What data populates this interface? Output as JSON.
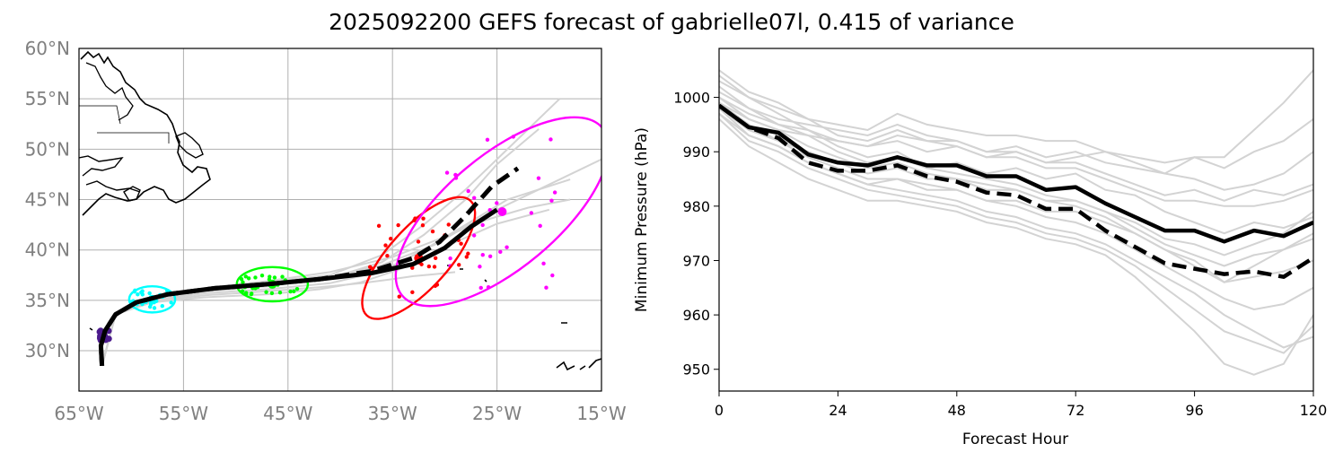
{
  "title": "2025092200 GEFS forecast of gabrielle07l, 0.415 of variance",
  "colors": {
    "members": "#d3d3d3",
    "mean": "#000000",
    "day0": "#4b1a8c",
    "day1": "#00ffff",
    "day2": "#00ff00",
    "day3": "#ff0000",
    "day4": "#ff00ff",
    "coast": "#000000",
    "grid": "#b0b0b0"
  },
  "chart_data": [
    {
      "type": "scatter",
      "subtype": "track-map",
      "xlim": [
        -65,
        -15
      ],
      "ylim": [
        26,
        60
      ],
      "xticks": [
        -65,
        -55,
        -45,
        -35,
        -25,
        -15
      ],
      "xtick_labels": [
        "65°W",
        "55°W",
        "45°W",
        "35°W",
        "25°W",
        "15°W"
      ],
      "yticks": [
        30,
        35,
        40,
        45,
        50,
        55,
        60
      ],
      "ytick_labels": [
        "30°N",
        "35°N",
        "40°N",
        "45°N",
        "50°N",
        "55°N",
        "60°N"
      ],
      "grid": true,
      "series": [
        {
          "style": "solid",
          "lon": [
            -62.8,
            -62.9,
            -62.5,
            -61.5,
            -59.5,
            -56.5,
            -52,
            -47,
            -42,
            -37,
            -33,
            -30,
            -27.5,
            -25
          ],
          "lat": [
            28.5,
            30.5,
            32,
            33.6,
            34.8,
            35.6,
            36.2,
            36.6,
            37.1,
            37.7,
            38.6,
            40.2,
            42.3,
            44.0
          ]
        },
        {
          "style": "dashed",
          "lon": [
            -62.8,
            -62.9,
            -62.5,
            -61.5,
            -59.5,
            -56.5,
            -52,
            -47,
            -42,
            -37,
            -33,
            -30.5,
            -28,
            -25.5,
            -23
          ],
          "lat": [
            28.5,
            30.5,
            32,
            33.6,
            34.8,
            35.6,
            36.2,
            36.6,
            37.1,
            37.9,
            39.2,
            40.8,
            43.4,
            46.3,
            48.1
          ]
        }
      ],
      "members": [
        {
          "lon": [
            -62.8,
            -61.5,
            -58,
            -53,
            -47,
            -41,
            -36,
            -32,
            -28,
            -24,
            -19
          ],
          "lat": [
            28.5,
            33.6,
            35.3,
            36.2,
            36.8,
            37.5,
            39.5,
            42.5,
            46,
            50,
            55
          ]
        },
        {
          "lon": [
            -62.8,
            -61.5,
            -58,
            -53,
            -47,
            -41,
            -36,
            -32,
            -28,
            -25,
            -21
          ],
          "lat": [
            28.5,
            33.6,
            35.1,
            35.9,
            36.4,
            37.2,
            38.8,
            41.5,
            45,
            48.5,
            52
          ]
        },
        {
          "lon": [
            -62.8,
            -61.5,
            -58,
            -53,
            -47,
            -41,
            -36,
            -32,
            -28,
            -24,
            -18
          ],
          "lat": [
            28.5,
            33.6,
            35.0,
            35.7,
            36.1,
            36.7,
            37.9,
            40,
            42.5,
            45,
            47
          ]
        },
        {
          "lon": [
            -62.8,
            -61.5,
            -58,
            -53,
            -47,
            -42,
            -38,
            -34,
            -30,
            -25,
            -20
          ],
          "lat": [
            28.5,
            33.6,
            34.8,
            35.3,
            35.6,
            36.1,
            36.8,
            38.2,
            40.3,
            42.6,
            44
          ]
        },
        {
          "lon": [
            -62.8,
            -61.5,
            -58,
            -53,
            -47,
            -41,
            -36,
            -31,
            -26,
            -20,
            -15
          ],
          "lat": [
            28.5,
            33.6,
            35.2,
            36.0,
            36.6,
            37.3,
            38.5,
            40.5,
            43.5,
            46.5,
            49
          ]
        },
        {
          "lon": [
            -62.8,
            -61.5,
            -58,
            -53,
            -47,
            -42,
            -38,
            -35,
            -33,
            -31,
            -29
          ],
          "lat": [
            28.5,
            33.6,
            34.9,
            35.5,
            35.9,
            36.3,
            36.7,
            37.1,
            37.4,
            37.6,
            37.8
          ]
        },
        {
          "lon": [
            -62.8,
            -61.5,
            -58,
            -53,
            -47,
            -41,
            -35,
            -30,
            -26,
            -22,
            -18
          ],
          "lat": [
            28.5,
            33.6,
            35.2,
            36.2,
            36.9,
            37.8,
            39.3,
            41.3,
            43,
            44.2,
            45
          ]
        }
      ],
      "ellipses": [
        {
          "color": "day1",
          "center": [
            -58,
            35.1
          ],
          "semi_axes_deg": [
            2.2,
            1.3
          ],
          "angle_deg": 0
        },
        {
          "color": "day2",
          "center": [
            -46.5,
            36.6
          ],
          "semi_axes_deg": [
            3.4,
            1.7
          ],
          "angle_deg": 0
        },
        {
          "color": "day3",
          "center": [
            -32.5,
            39.2
          ],
          "semi_axes_deg": [
            7.4,
            3.0
          ],
          "angle_deg": 48
        },
        {
          "color": "day4",
          "center": [
            -24.5,
            43.8
          ],
          "semi_axes_deg": [
            12.5,
            5.6
          ],
          "angle_deg": 40
        }
      ]
    },
    {
      "type": "line",
      "xlabel": "Forecast Hour",
      "ylabel": "Minimum Pressure (hPa)",
      "xlim": [
        0,
        120
      ],
      "ylim": [
        946,
        1009
      ],
      "xticks": [
        0,
        24,
        48,
        72,
        96,
        120
      ],
      "yticks": [
        950,
        960,
        970,
        980,
        990,
        1000
      ],
      "x": [
        0,
        6,
        12,
        18,
        24,
        30,
        36,
        42,
        48,
        54,
        60,
        66,
        72,
        78,
        84,
        90,
        96,
        102,
        108,
        114,
        120
      ],
      "series": [
        {
          "style": "solid",
          "values": [
            998.5,
            994.5,
            993.5,
            989.5,
            988,
            987.5,
            989,
            987.5,
            987.5,
            985.5,
            985.5,
            983,
            983.5,
            980.5,
            978,
            975.5,
            975.5,
            973.5,
            975.5,
            974.5,
            977
          ]
        },
        {
          "style": "dashed",
          "values": [
            998.5,
            994.5,
            992.5,
            988,
            986.5,
            986.5,
            987.5,
            985.5,
            984.5,
            982.5,
            982,
            979.5,
            979.5,
            975.5,
            972.5,
            969.5,
            968.5,
            967.5,
            968,
            967,
            970.5
          ]
        }
      ],
      "members": [
        [
          1004,
          1000,
          997,
          994,
          991,
          989,
          990,
          987,
          988,
          986,
          987,
          985,
          986,
          983,
          982,
          979,
          977,
          975,
          977,
          976,
          978
        ],
        [
          1002,
          998,
          995,
          993,
          990,
          988,
          989,
          987,
          986,
          985,
          984,
          982,
          981,
          979,
          976,
          973,
          971,
          969,
          971,
          972,
          975
        ],
        [
          1000,
          996,
          994,
          991,
          989,
          987,
          988,
          986,
          985,
          984,
          983,
          981,
          980,
          978,
          975,
          972,
          969,
          966,
          967,
          968,
          970
        ],
        [
          999,
          995,
          992,
          989,
          987,
          985,
          985,
          984,
          983,
          981,
          980,
          978,
          977,
          975,
          972,
          969,
          966,
          963,
          961,
          962,
          965
        ],
        [
          998,
          993,
          991,
          988,
          986,
          984,
          983,
          982,
          981,
          979,
          978,
          976,
          975,
          973,
          970,
          967,
          964,
          960,
          957,
          954,
          956
        ],
        [
          997,
          992,
          990,
          987,
          985,
          983,
          982,
          981,
          980,
          978,
          977,
          975,
          974,
          972,
          969,
          965,
          961,
          957,
          955,
          953,
          958
        ],
        [
          1001,
          998,
          996,
          995,
          994,
          993,
          995,
          993,
          992,
          990,
          990,
          988,
          988,
          986,
          984,
          982,
          983,
          981,
          983,
          982,
          984
        ],
        [
          1003,
          1000,
          998,
          996,
          995,
          994,
          997,
          995,
          994,
          993,
          993,
          992,
          992,
          990,
          989,
          988,
          989,
          987,
          990,
          992,
          996
        ],
        [
          999,
          996,
          994,
          993,
          992,
          991,
          993,
          992,
          992,
          990,
          991,
          989,
          990,
          988,
          987,
          986,
          989,
          989,
          994,
          999,
          1005
        ],
        [
          1000,
          997,
          995,
          994,
          992,
          991,
          992,
          990,
          991,
          989,
          990,
          988,
          989,
          990,
          988,
          986,
          985,
          983,
          984,
          986,
          990
        ],
        [
          997,
          993,
          991,
          988,
          986,
          984,
          985,
          983,
          983,
          981,
          981,
          979,
          979,
          977,
          975,
          972,
          970,
          966,
          969,
          972,
          974
        ],
        [
          1005,
          1001,
          999,
          996,
          993,
          992,
          994,
          992,
          991,
          989,
          989,
          987,
          987,
          985,
          983,
          981,
          981,
          980,
          980,
          981,
          983
        ],
        [
          996,
          991,
          988,
          985,
          983,
          981,
          981,
          980,
          979,
          977,
          976,
          974,
          973,
          971,
          967,
          962,
          957,
          951,
          949,
          951,
          960
        ],
        [
          998,
          994,
          992,
          990,
          988,
          986,
          987,
          985,
          985,
          983,
          983,
          981,
          981,
          979,
          977,
          974,
          973,
          971,
          973,
          975,
          979
        ]
      ]
    }
  ]
}
